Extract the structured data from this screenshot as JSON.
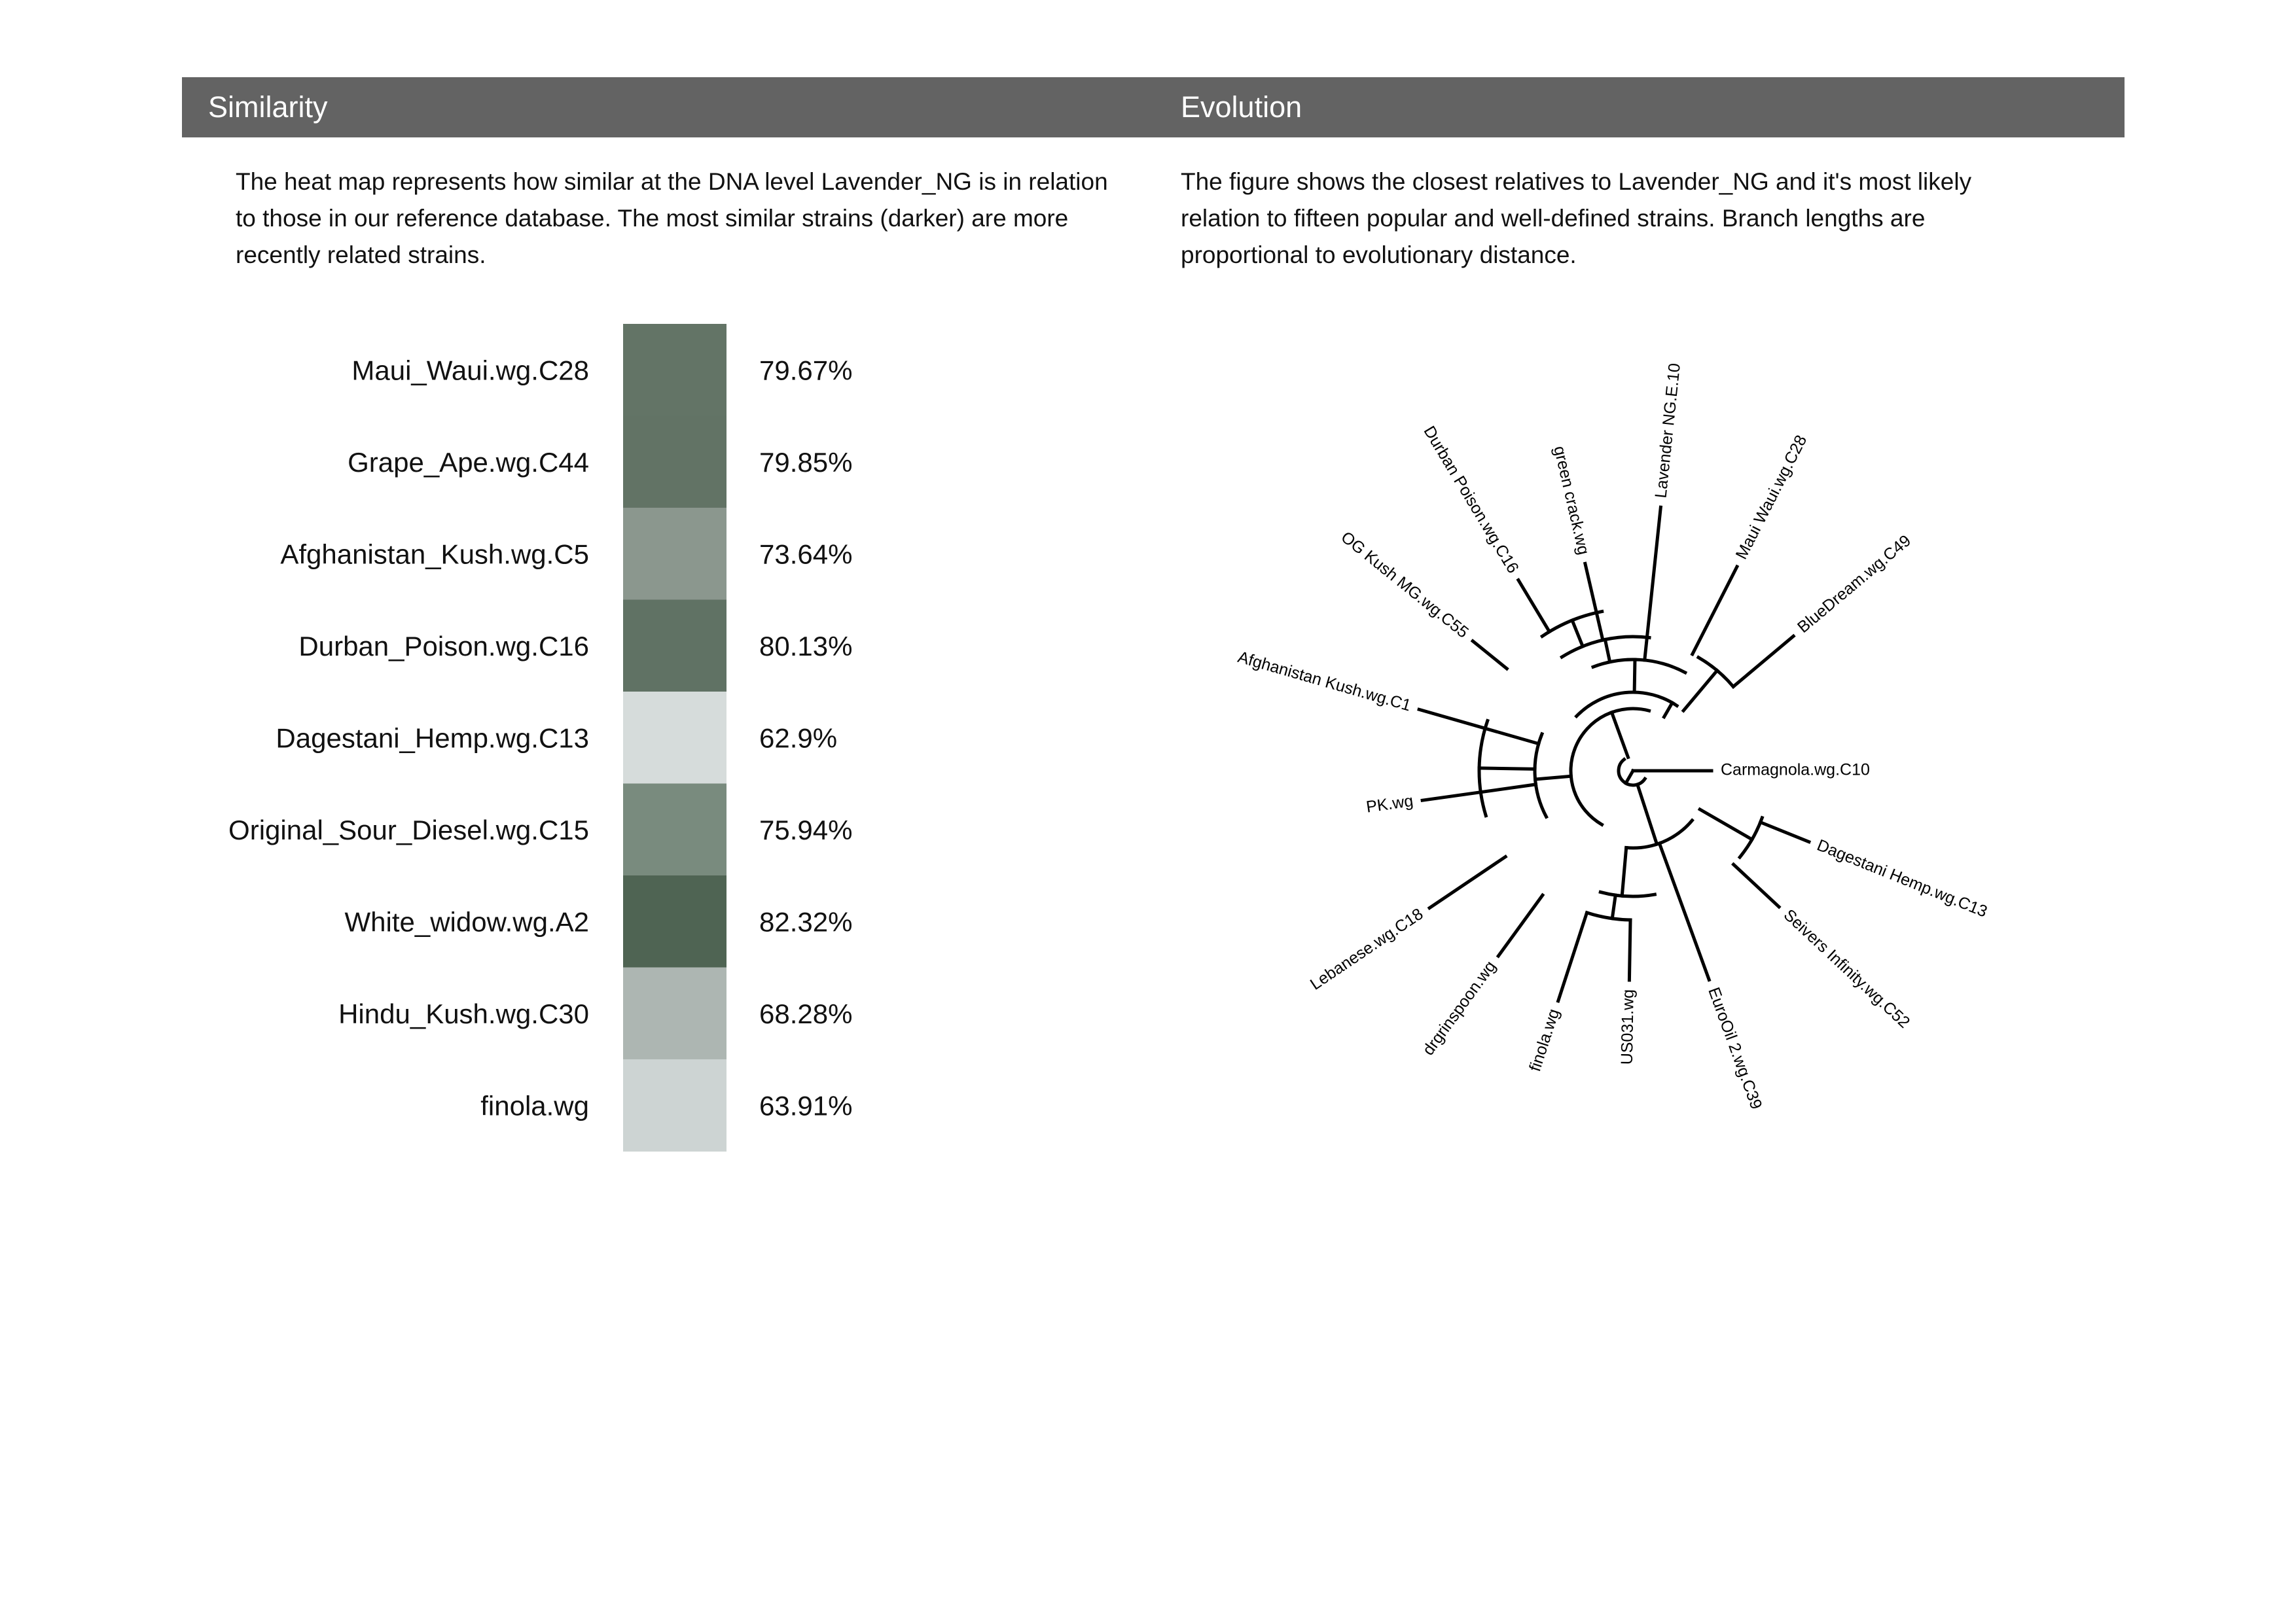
{
  "similarity": {
    "title": "Similarity",
    "description": "The heat map represents how similar at the DNA level Lavender_NG is in relation to those in our reference database. The most similar strains (darker) are more recently related strains."
  },
  "evolution": {
    "title": "Evolution",
    "description": "The figure shows the closest relatives to Lavender_NG and it's most likely relation to fifteen popular and well-defined strains. Branch lengths are proportional to evolutionary distance."
  },
  "colors": {
    "header_bg": "#636363",
    "header_text": "#ffffff",
    "heat_low": "#d6dcdb",
    "heat_high": "#4f6453",
    "tree_line": "#000000"
  },
  "chart_data": [
    {
      "type": "heatmap",
      "categories": [
        "Maui_Waui.wg.C28",
        "Grape_Ape.wg.C44",
        "Afghanistan_Kush.wg.C5",
        "Durban_Poison.wg.C16",
        "Dagestani_Hemp.wg.C13",
        "Original_Sour_Diesel.wg.C15",
        "White_widow.wg.A2",
        "Hindu_Kush.wg.C30",
        "finola.wg"
      ],
      "values": [
        79.67,
        79.85,
        73.64,
        80.13,
        62.9,
        75.94,
        82.32,
        68.28,
        63.91
      ],
      "value_labels": [
        "79.67%",
        "79.85%",
        "73.64%",
        "80.13%",
        "62.9%",
        "75.94%",
        "82.32%",
        "68.28%",
        "63.91%"
      ],
      "cells": [
        {
          "value": 79.67,
          "color": "#637466"
        },
        {
          "value": 79.85,
          "color": "#627365"
        },
        {
          "value": 73.64,
          "color": "#8b978e"
        },
        {
          "value": 80.13,
          "color": "#607264"
        },
        {
          "value": 62.9,
          "color": "#d6dcdb"
        },
        {
          "value": 75.94,
          "color": "#798b7e"
        },
        {
          "value": 82.32,
          "color": "#4f6453"
        },
        {
          "value": 68.28,
          "color": "#adb6b2"
        },
        {
          "value": 63.91,
          "color": "#cdd4d3"
        }
      ]
    },
    {
      "type": "dendrogram",
      "layout": "circular",
      "leaves": [
        {
          "id": "carmagnola",
          "label": "Carmagnola.wg.C10",
          "angle": 0
        },
        {
          "id": "dagestani",
          "label": "Dagestani Hemp.wg.C13",
          "angle": 22
        },
        {
          "id": "seivers",
          "label": "Seivers Infinity.wg.C52",
          "angle": 43
        },
        {
          "id": "eurooil",
          "label": "EuroOil 2.wg.C39",
          "angle": 70
        },
        {
          "id": "us031",
          "label": "US031.wg",
          "angle": 91
        },
        {
          "id": "finola",
          "label": "finola.wg",
          "angle": 108
        },
        {
          "id": "drgrinspoon",
          "label": "drgrinspoon.wg",
          "angle": 126
        },
        {
          "id": "lebanese",
          "label": "Lebanese.wg.C18",
          "angle": 146
        },
        {
          "id": "pk",
          "label": "PK.wg",
          "angle": 172
        },
        {
          "id": "afghanistan",
          "label": "Afghanistan Kush.wg.C1",
          "angle": 196
        },
        {
          "id": "ogkush",
          "label": "OG Kush MG.wg.C55",
          "angle": 219
        },
        {
          "id": "durban",
          "label": "Durban Poison.wg.C16",
          "angle": 239
        },
        {
          "id": "greencrack",
          "label": "green crack.wg",
          "angle": 257
        },
        {
          "id": "lavender",
          "label": "Lavender NG.E.10",
          "angle": 276
        },
        {
          "id": "maui",
          "label": "Maui Waui.wg.C28",
          "angle": 297
        },
        {
          "id": "bluedream",
          "label": "BlueDream.wg.C49",
          "angle": 320
        }
      ]
    }
  ]
}
